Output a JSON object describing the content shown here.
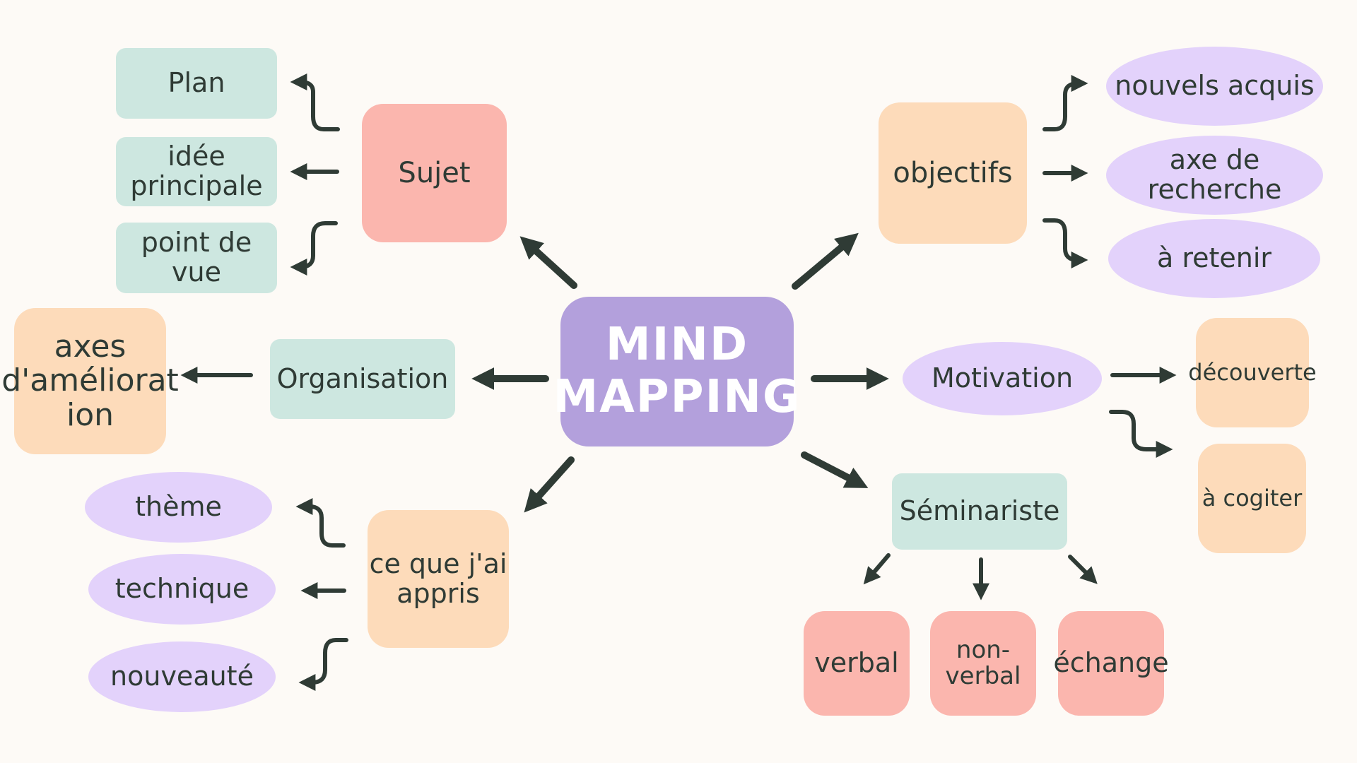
{
  "center": {
    "line1": "MIND",
    "line2": "MAPPING"
  },
  "sujet": {
    "label": "Sujet",
    "children": [
      "Plan",
      "idée\nprincipale",
      "point de vue"
    ]
  },
  "objectifs": {
    "label": "objectifs",
    "children": [
      "nouvels acquis",
      "axe de recherche",
      "à retenir"
    ]
  },
  "organisation": {
    "label": "Organisation",
    "child": "axes\nd'améliorat\nion"
  },
  "motivation": {
    "label": "Motivation",
    "children": [
      "découverte",
      "à cogiter"
    ]
  },
  "appris": {
    "label": "ce que j'ai\nappris",
    "children": [
      "thème",
      "technique",
      "nouveauté"
    ]
  },
  "seminariste": {
    "label": "Séminariste",
    "children": [
      "verbal",
      "non-verbal",
      "échange"
    ]
  },
  "colors": {
    "green": "#cde7e0",
    "pink": "#fbb6ae",
    "peach": "#fddbba",
    "purple": "#e3d2fb",
    "center": "#b3a0dc",
    "arrow": "#2f3b35",
    "background": "#fdfaf6"
  }
}
